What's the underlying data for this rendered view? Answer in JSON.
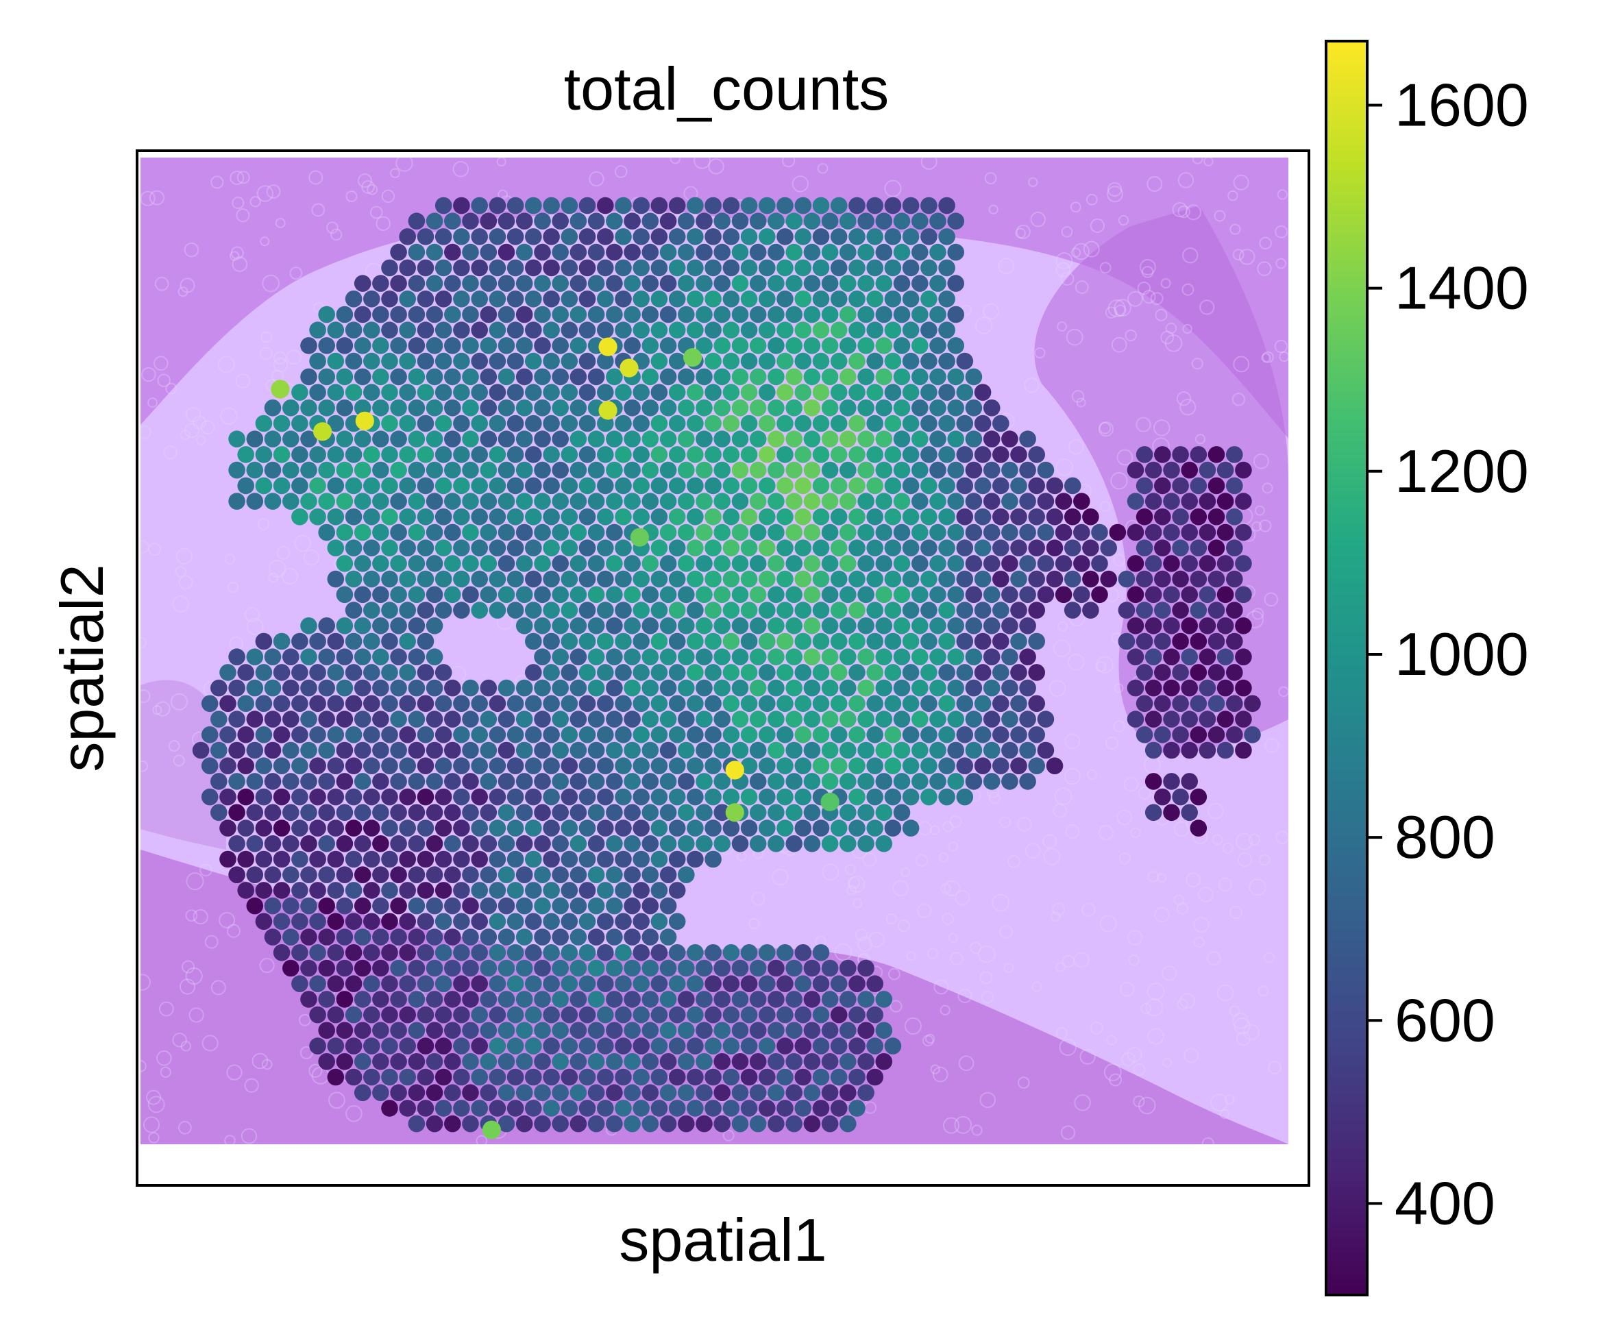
{
  "chart_data": {
    "type": "scatter",
    "title": "total_counts",
    "xlabel": "spatial1",
    "ylabel": "spatial2",
    "colorbar": {
      "colormap": "viridis",
      "range": [
        300,
        1670
      ],
      "ticks": [
        400,
        600,
        800,
        1000,
        1200,
        1400,
        1600
      ],
      "tick_labels": [
        "400",
        "600",
        "800",
        "1000",
        "1200",
        "1400",
        "1600"
      ]
    },
    "background_image": "H&E tissue section (purple tint)",
    "spot_grid": {
      "x_range": [
        0,
        105
      ],
      "y_range": [
        0,
        90
      ],
      "spacing": 1.7
    },
    "highlight_spots": [
      {
        "x": 40,
        "y": 14,
        "value": 1640
      },
      {
        "x": 42,
        "y": 16,
        "value": 1600
      },
      {
        "x": 40,
        "y": 20,
        "value": 1580
      },
      {
        "x": 17,
        "y": 21,
        "value": 1620
      },
      {
        "x": 13,
        "y": 22,
        "value": 1540
      },
      {
        "x": 9,
        "y": 18,
        "value": 1450
      },
      {
        "x": 52,
        "y": 54,
        "value": 1650
      },
      {
        "x": 48,
        "y": 15,
        "value": 1380
      },
      {
        "x": 52,
        "y": 58,
        "value": 1420
      },
      {
        "x": 29,
        "y": 88,
        "value": 1380
      },
      {
        "x": 43,
        "y": 32,
        "value": 1350
      },
      {
        "x": 61,
        "y": 57,
        "value": 1300
      }
    ]
  },
  "colors": {
    "tissue_background": "#d9b8ff",
    "tissue_stain": "#b64fd6",
    "frame": "#000000"
  }
}
